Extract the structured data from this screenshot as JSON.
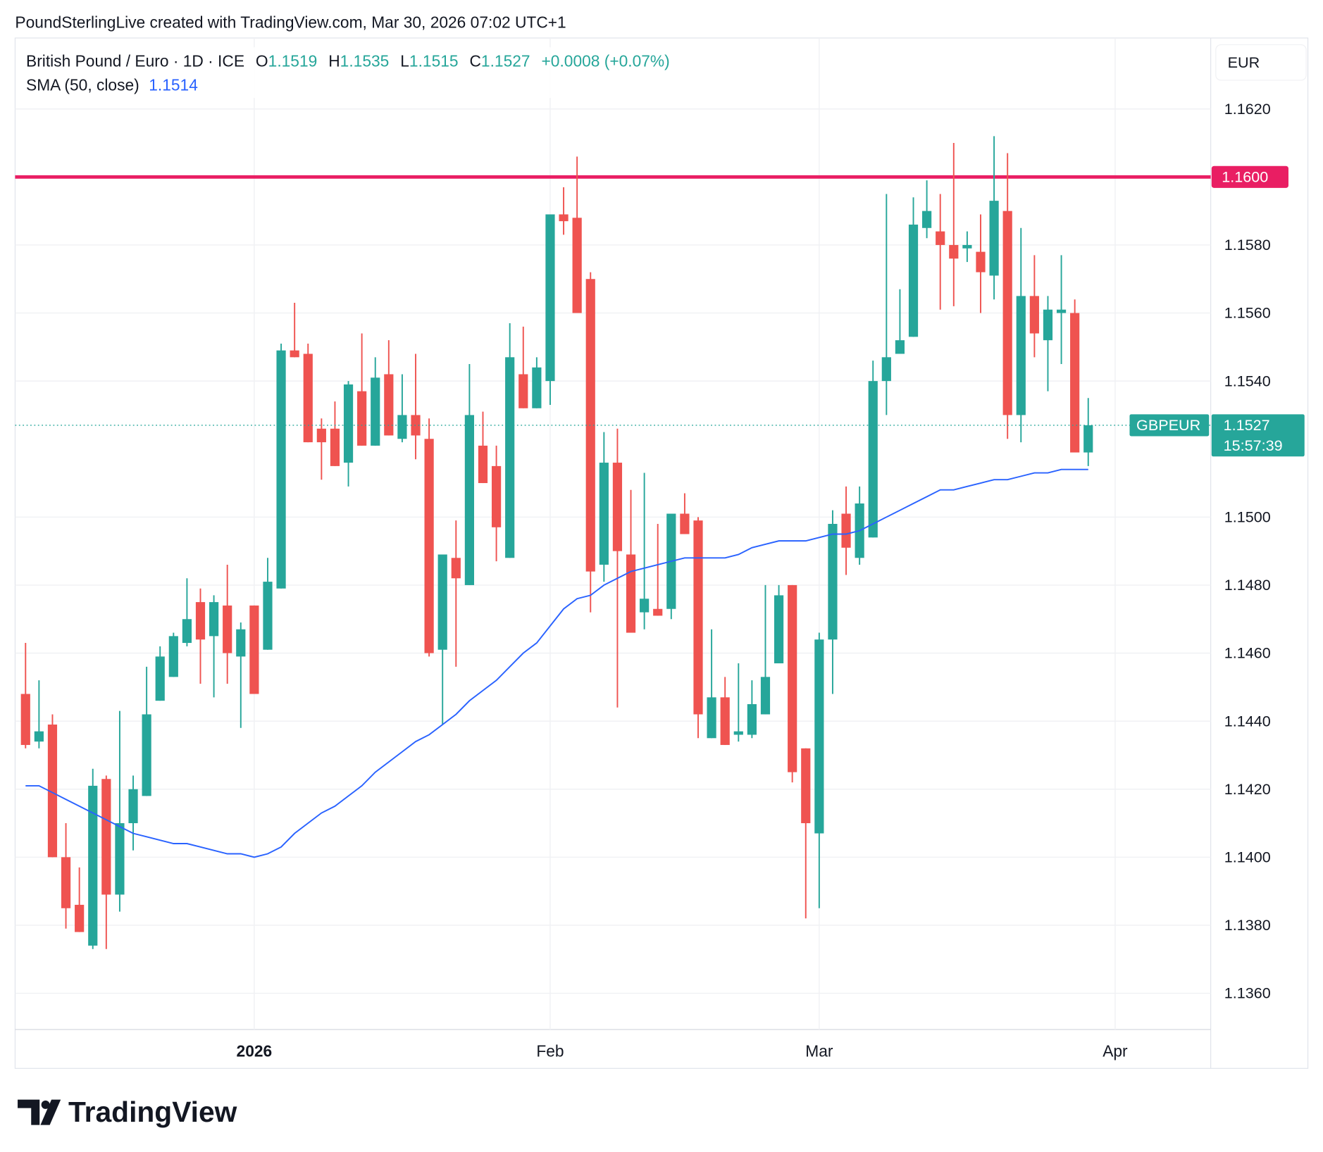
{
  "header": {
    "attribution": "PoundSterlingLive created with TradingView.com, Mar 30, 2026 07:02 UTC+1"
  },
  "legend": {
    "symbol": "British Pound / Euro · 1D · ICE",
    "o_label": "O",
    "o_value": "1.1519",
    "h_label": "H",
    "h_value": "1.1535",
    "l_label": "L",
    "l_value": "1.1515",
    "c_label": "C",
    "c_value": "1.1527",
    "change": "+0.0008 (+0.07%)",
    "sma_label": "SMA (50, close)",
    "sma_value": "1.1514"
  },
  "price_axis": {
    "currency": "EUR",
    "ticks": [
      "1.1620",
      "1.1580",
      "1.1560",
      "1.1540",
      "1.1500",
      "1.1480",
      "1.1460",
      "1.1440",
      "1.1420",
      "1.1400",
      "1.1380",
      "1.1360"
    ]
  },
  "time_axis": {
    "labels": [
      "2026",
      "Feb",
      "Mar",
      "Apr"
    ]
  },
  "level_line": {
    "value": 1.16,
    "label": "1.1600",
    "color": "#e91e63"
  },
  "current_price": {
    "symbol": "GBPEUR",
    "price": "1.1527",
    "countdown": "15:57:39",
    "value": 1.1527
  },
  "brand": {
    "logo_text": "TradingView"
  },
  "colors": {
    "up": "#26a69a",
    "down": "#ef5350",
    "sma": "#2962ff"
  },
  "chart_data": {
    "type": "candlestick",
    "symbol": "GBPEUR",
    "interval": "1D",
    "ylim": [
      1.135,
      1.1632
    ],
    "grid": true,
    "columns": [
      "date",
      "open",
      "high",
      "low",
      "close"
    ],
    "candles": [
      [
        "2025-12-09",
        1.1448,
        1.1463,
        1.1432,
        1.1433
      ],
      [
        "2025-12-10",
        1.1434,
        1.1452,
        1.1432,
        1.1437
      ],
      [
        "2025-12-11",
        1.1439,
        1.1442,
        1.14,
        1.14
      ],
      [
        "2025-12-12",
        1.14,
        1.141,
        1.1379,
        1.1385
      ],
      [
        "2025-12-15",
        1.1386,
        1.1397,
        1.1378,
        1.1378
      ],
      [
        "2025-12-16",
        1.1374,
        1.1426,
        1.1373,
        1.1421
      ],
      [
        "2025-12-17",
        1.1423,
        1.1424,
        1.1373,
        1.1389
      ],
      [
        "2025-12-18",
        1.1389,
        1.1443,
        1.1384,
        1.141
      ],
      [
        "2025-12-19",
        1.141,
        1.1424,
        1.1402,
        1.142
      ],
      [
        "2025-12-22",
        1.1418,
        1.1456,
        1.1418,
        1.1442
      ],
      [
        "2025-12-23",
        1.1446,
        1.1462,
        1.1446,
        1.1459
      ],
      [
        "2025-12-24",
        1.1453,
        1.1466,
        1.1453,
        1.1465
      ],
      [
        "2025-12-25",
        1.1463,
        1.1482,
        1.1462,
        1.147
      ],
      [
        "2025-12-26",
        1.1475,
        1.1479,
        1.1451,
        1.1464
      ],
      [
        "2025-12-29",
        1.1465,
        1.1477,
        1.1447,
        1.1475
      ],
      [
        "2025-12-30",
        1.1474,
        1.1486,
        1.1451,
        1.146
      ],
      [
        "2025-12-31",
        1.1459,
        1.1469,
        1.1438,
        1.1467
      ],
      [
        "2026-01-01",
        1.1474,
        1.1474,
        1.1448,
        1.1448
      ],
      [
        "2026-01-02",
        1.1461,
        1.1488,
        1.1461,
        1.1481
      ],
      [
        "2026-01-05",
        1.1479,
        1.1551,
        1.1479,
        1.1549
      ],
      [
        "2026-01-06",
        1.1549,
        1.1563,
        1.1547,
        1.1547
      ],
      [
        "2026-01-07",
        1.1548,
        1.1551,
        1.1522,
        1.1522
      ],
      [
        "2026-01-08",
        1.1526,
        1.1529,
        1.1511,
        1.1522
      ],
      [
        "2026-01-09",
        1.1526,
        1.1534,
        1.1515,
        1.1515
      ],
      [
        "2026-01-12",
        1.1516,
        1.154,
        1.1509,
        1.1539
      ],
      [
        "2026-01-13",
        1.1537,
        1.1554,
        1.1521,
        1.1521
      ],
      [
        "2026-01-14",
        1.1521,
        1.1547,
        1.1521,
        1.1541
      ],
      [
        "2026-01-15",
        1.1542,
        1.1552,
        1.1524,
        1.1524
      ],
      [
        "2026-01-16",
        1.1523,
        1.1542,
        1.1522,
        1.153
      ],
      [
        "2026-01-19",
        1.153,
        1.1548,
        1.1517,
        1.1524
      ],
      [
        "2026-01-20",
        1.1523,
        1.1529,
        1.1459,
        1.146
      ],
      [
        "2026-01-21",
        1.1461,
        1.1489,
        1.1439,
        1.1489
      ],
      [
        "2026-01-22",
        1.1488,
        1.1499,
        1.1456,
        1.1482
      ],
      [
        "2026-01-23",
        1.148,
        1.1545,
        1.148,
        1.153
      ],
      [
        "2026-01-26",
        1.1521,
        1.1531,
        1.151,
        1.151
      ],
      [
        "2026-01-27",
        1.1515,
        1.1521,
        1.1487,
        1.1497
      ],
      [
        "2026-01-28",
        1.1488,
        1.1557,
        1.1488,
        1.1547
      ],
      [
        "2026-01-29",
        1.1542,
        1.1556,
        1.1532,
        1.1532
      ],
      [
        "2026-01-30",
        1.1532,
        1.1547,
        1.1532,
        1.1544
      ],
      [
        "2026-02-02",
        1.154,
        1.1589,
        1.1533,
        1.1589
      ],
      [
        "2026-02-03",
        1.1589,
        1.1597,
        1.1583,
        1.1587
      ],
      [
        "2026-02-04",
        1.1588,
        1.1606,
        1.156,
        1.156
      ],
      [
        "2026-02-05",
        1.157,
        1.1572,
        1.1472,
        1.1484
      ],
      [
        "2026-02-06",
        1.1486,
        1.1525,
        1.1481,
        1.1516
      ],
      [
        "2026-02-09",
        1.1516,
        1.1526,
        1.1444,
        1.149
      ],
      [
        "2026-02-10",
        1.1489,
        1.1508,
        1.1466,
        1.1466
      ],
      [
        "2026-02-11",
        1.1472,
        1.1513,
        1.1467,
        1.1476
      ],
      [
        "2026-02-12",
        1.1473,
        1.1498,
        1.1471,
        1.1471
      ],
      [
        "2026-02-13",
        1.1473,
        1.1501,
        1.147,
        1.1501
      ],
      [
        "2026-02-16",
        1.1501,
        1.1507,
        1.1495,
        1.1495
      ],
      [
        "2026-02-17",
        1.1499,
        1.15,
        1.1435,
        1.1442
      ],
      [
        "2026-02-18",
        1.1435,
        1.1467,
        1.1435,
        1.1447
      ],
      [
        "2026-02-19",
        1.1447,
        1.1453,
        1.1433,
        1.1433
      ],
      [
        "2026-02-20",
        1.1436,
        1.1457,
        1.1434,
        1.1437
      ],
      [
        "2026-02-23",
        1.1436,
        1.1452,
        1.1435,
        1.1445
      ],
      [
        "2026-02-24",
        1.1442,
        1.148,
        1.1442,
        1.1453
      ],
      [
        "2026-02-25",
        1.1457,
        1.148,
        1.1457,
        1.1477
      ],
      [
        "2026-02-26",
        1.148,
        1.148,
        1.1422,
        1.1425
      ],
      [
        "2026-02-27",
        1.1432,
        1.1432,
        1.1382,
        1.141
      ],
      [
        "2026-03-02",
        1.1407,
        1.1466,
        1.1385,
        1.1464
      ],
      [
        "2026-03-03",
        1.1464,
        1.1502,
        1.1448,
        1.1498
      ],
      [
        "2026-03-04",
        1.1501,
        1.1509,
        1.1483,
        1.1491
      ],
      [
        "2026-03-05",
        1.1488,
        1.1509,
        1.1486,
        1.1504
      ],
      [
        "2026-03-06",
        1.1494,
        1.1546,
        1.1494,
        1.154
      ],
      [
        "2026-03-09",
        1.154,
        1.1595,
        1.153,
        1.1547
      ],
      [
        "2026-03-10",
        1.1548,
        1.1567,
        1.1548,
        1.1552
      ],
      [
        "2026-03-11",
        1.1553,
        1.1594,
        1.1553,
        1.1586
      ],
      [
        "2026-03-12",
        1.1585,
        1.1599,
        1.1582,
        1.159
      ],
      [
        "2026-03-13",
        1.1584,
        1.1595,
        1.1561,
        1.158
      ],
      [
        "2026-03-16",
        1.158,
        1.161,
        1.1562,
        1.1576
      ],
      [
        "2026-03-17",
        1.1579,
        1.1584,
        1.1575,
        1.158
      ],
      [
        "2026-03-18",
        1.1578,
        1.1589,
        1.156,
        1.1572
      ],
      [
        "2026-03-19",
        1.1571,
        1.1612,
        1.1564,
        1.1593
      ],
      [
        "2026-03-20",
        1.159,
        1.1607,
        1.1523,
        1.153
      ],
      [
        "2026-03-23",
        1.153,
        1.1585,
        1.1522,
        1.1565
      ],
      [
        "2026-03-24",
        1.1565,
        1.1577,
        1.1547,
        1.1554
      ],
      [
        "2026-03-25",
        1.1552,
        1.1565,
        1.1537,
        1.1561
      ],
      [
        "2026-03-26",
        1.156,
        1.1577,
        1.1545,
        1.1561
      ],
      [
        "2026-03-27",
        1.156,
        1.1564,
        1.1519,
        1.1519
      ],
      [
        "2026-03-30",
        1.1519,
        1.1535,
        1.1515,
        1.1527
      ]
    ],
    "sma50": [
      1.1421,
      1.1421,
      1.1419,
      1.1417,
      1.1415,
      1.1413,
      1.1411,
      1.1409,
      1.1407,
      1.1406,
      1.1405,
      1.1404,
      1.1404,
      1.1403,
      1.1402,
      1.1401,
      1.1401,
      1.14,
      1.1401,
      1.1403,
      1.1407,
      1.141,
      1.1413,
      1.1415,
      1.1418,
      1.1421,
      1.1425,
      1.1428,
      1.1431,
      1.1434,
      1.1436,
      1.1439,
      1.1442,
      1.1446,
      1.1449,
      1.1452,
      1.1456,
      1.146,
      1.1463,
      1.1468,
      1.1473,
      1.1476,
      1.1477,
      1.148,
      1.1482,
      1.1484,
      1.1485,
      1.1486,
      1.1487,
      1.1488,
      1.1488,
      1.1488,
      1.1488,
      1.1489,
      1.1491,
      1.1492,
      1.1493,
      1.1493,
      1.1493,
      1.1494,
      1.1495,
      1.1495,
      1.1496,
      1.1498,
      1.15,
      1.1502,
      1.1504,
      1.1506,
      1.1508,
      1.1508,
      1.1509,
      1.151,
      1.1511,
      1.1511,
      1.1512,
      1.1513,
      1.1513,
      1.1514,
      1.1514,
      1.1514
    ]
  }
}
